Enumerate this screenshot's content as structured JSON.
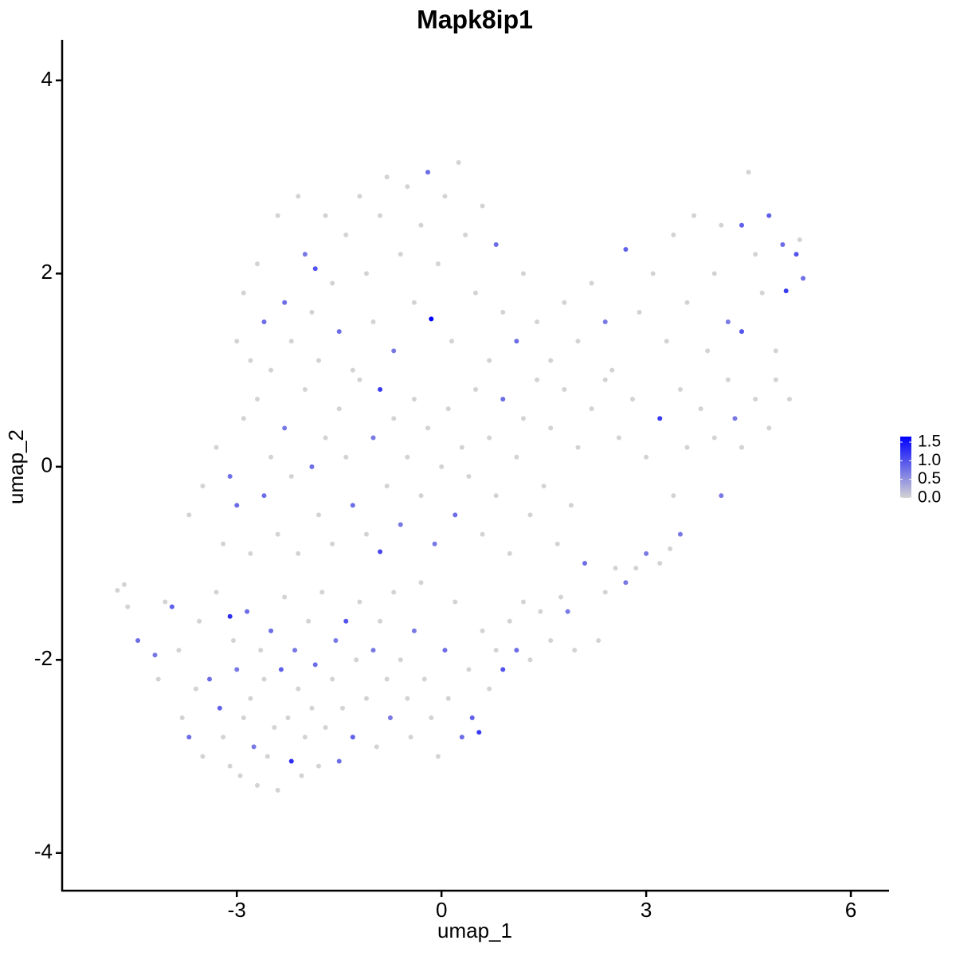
{
  "chart_data": {
    "type": "scatter",
    "title": "Mapk8ip1",
    "x_label": "umap_1",
    "y_label": "umap_2",
    "xlim": [
      -5.56,
      6.56
    ],
    "ylim": [
      -4.39,
      4.42
    ],
    "xticks": [
      -3,
      0,
      3,
      6
    ],
    "yticks": [
      -4,
      -2,
      0,
      2,
      4
    ],
    "color_scale": {
      "low": "#d3d3d3",
      "high": "#0000ff",
      "limits": [
        0,
        1.65
      ],
      "ticks": [
        {
          "value": 0,
          "label": "0.0"
        },
        {
          "value": 0.5,
          "label": "0.5"
        },
        {
          "value": 1,
          "label": "1.0"
        },
        {
          "value": 1.5,
          "label": "1.5"
        }
      ]
    },
    "x": [
      -4.75,
      -4.65,
      -4.6,
      -4.45,
      -4.2,
      -4.15,
      -4.05,
      -3.95,
      -3.85,
      -3.8,
      -3.7,
      -3.6,
      -3.55,
      -3.5,
      -3.4,
      -3.3,
      -3.25,
      -3.2,
      -3.1,
      -3.05,
      -3.0,
      -2.95,
      -2.9,
      -2.85,
      -2.8,
      -2.75,
      -2.7,
      -2.65,
      -2.6,
      -2.55,
      -2.5,
      -2.45,
      -2.4,
      -2.35,
      -2.3,
      -2.25,
      -2.2,
      -2.15,
      -2.1,
      -2.05,
      -2.0,
      -1.95,
      -1.9,
      -1.85,
      -1.8,
      -1.75,
      -1.7,
      -1.6,
      -1.55,
      -1.5,
      -1.45,
      -1.4,
      -1.3,
      -1.25,
      -1.2,
      -1.1,
      -1.0,
      -0.95,
      -0.9,
      -0.8,
      -0.75,
      -0.7,
      -0.6,
      -0.5,
      -0.45,
      -0.4,
      -0.3,
      -0.25,
      -0.15,
      -0.05,
      0.05,
      0.1,
      0.2,
      0.3,
      0.4,
      0.45,
      0.55,
      0.6,
      0.7,
      0.8,
      0.9,
      1.0,
      1.1,
      1.2,
      1.3,
      1.45,
      1.6,
      1.75,
      1.85,
      1.95,
      2.3,
      2.4,
      2.55,
      2.7,
      2.85,
      3.0,
      3.2,
      3.35,
      3.5,
      -3.1,
      -3.7,
      -3.5,
      -3.3,
      -3.2,
      -3.1,
      -3.0,
      -2.9,
      -2.8,
      -2.7,
      -2.6,
      -2.5,
      -2.4,
      -2.3,
      -2.2,
      -2.1,
      -2.0,
      -1.9,
      -1.8,
      -1.7,
      -1.6,
      -1.5,
      -1.4,
      -1.3,
      -1.2,
      -1.1,
      -1.0,
      -0.9,
      -0.9,
      -0.8,
      -0.7,
      -0.6,
      -0.5,
      -0.4,
      -0.3,
      -0.2,
      -0.1,
      0.0,
      0.1,
      0.2,
      0.3,
      0.4,
      0.5,
      0.6,
      0.7,
      0.8,
      0.9,
      1.0,
      1.1,
      1.2,
      1.3,
      1.4,
      1.5,
      1.6,
      1.7,
      1.8,
      1.9,
      2.0,
      2.1,
      2.2,
      2.4,
      2.6,
      2.8,
      3.0,
      3.2,
      3.4,
      3.5,
      3.6,
      3.8,
      4.0,
      4.1,
      4.2,
      4.3,
      4.4,
      4.6,
      4.8,
      4.9,
      5.1,
      -3.0,
      -2.9,
      -2.8,
      -2.7,
      -2.6,
      -2.5,
      -2.4,
      -2.3,
      -2.2,
      -2.1,
      -2.0,
      -1.9,
      -1.85,
      -1.8,
      -1.7,
      -1.6,
      -1.5,
      -1.4,
      -1.3,
      -1.2,
      -1.1,
      -1.0,
      -0.9,
      -0.8,
      -0.7,
      -0.6,
      -0.5,
      -0.4,
      -0.3,
      -0.2,
      -0.15,
      -0.05,
      0.05,
      0.15,
      0.25,
      0.35,
      0.5,
      0.6,
      0.7,
      0.8,
      0.9,
      1.1,
      1.2,
      1.4,
      1.6,
      1.8,
      2.0,
      2.2,
      2.4,
      2.5,
      2.7,
      2.9,
      3.1,
      3.3,
      3.4,
      3.6,
      3.7,
      3.9,
      4.0,
      4.1,
      4.2,
      4.4,
      4.4,
      4.5,
      4.6,
      4.7,
      4.8,
      4.9,
      5.0,
      5.05,
      5.2,
      5.3,
      5.25
    ],
    "y": [
      -1.28,
      -1.22,
      -1.45,
      -1.8,
      -1.95,
      -2.2,
      -1.4,
      -1.45,
      -1.9,
      -2.6,
      -2.8,
      -2.3,
      -1.6,
      -3.0,
      -2.2,
      -1.3,
      -2.5,
      -2.8,
      -3.1,
      -1.8,
      -2.1,
      -3.2,
      -2.6,
      -1.5,
      -2.4,
      -2.9,
      -3.3,
      -1.9,
      -2.2,
      -3.0,
      -1.7,
      -2.7,
      -3.35,
      -2.1,
      -1.35,
      -2.6,
      -3.05,
      -1.9,
      -2.3,
      -3.2,
      -2.8,
      -1.6,
      -2.5,
      -2.05,
      -3.1,
      -1.3,
      -2.7,
      -2.2,
      -1.8,
      -3.05,
      -2.5,
      -1.6,
      -2.8,
      -2.0,
      -1.4,
      -2.4,
      -1.9,
      -2.9,
      -1.6,
      -2.2,
      -2.6,
      -1.3,
      -2.0,
      -2.4,
      -2.8,
      -1.7,
      -1.2,
      -2.2,
      -2.6,
      -3.0,
      -1.9,
      -2.4,
      -1.4,
      -2.8,
      -2.1,
      -2.6,
      -2.75,
      -1.7,
      -2.3,
      -1.9,
      -2.1,
      -1.6,
      -1.9,
      -1.4,
      -2.0,
      -1.5,
      -1.8,
      -1.35,
      -1.5,
      -1.9,
      -1.8,
      -1.3,
      -1.05,
      -1.2,
      -1.05,
      -0.9,
      -1.0,
      -0.85,
      -0.7,
      -1.55,
      -0.5,
      -0.2,
      0.2,
      -0.8,
      -0.1,
      -0.4,
      0.5,
      -0.9,
      0.7,
      -0.3,
      0.1,
      -0.7,
      0.4,
      -0.1,
      -0.9,
      0.8,
      0.0,
      -0.5,
      0.3,
      -0.8,
      0.6,
      0.1,
      -0.4,
      0.9,
      -0.7,
      0.3,
      -0.88,
      0.8,
      -0.2,
      0.5,
      -0.6,
      0.1,
      0.7,
      -0.3,
      0.4,
      -0.8,
      0.0,
      0.6,
      -0.5,
      0.2,
      -0.1,
      0.8,
      -0.7,
      0.3,
      -0.3,
      0.7,
      -0.9,
      0.1,
      0.5,
      -0.5,
      0.9,
      -0.2,
      0.4,
      -0.8,
      0.8,
      -0.4,
      0.2,
      -1.0,
      0.6,
      0.9,
      0.3,
      0.7,
      0.1,
      0.5,
      -0.3,
      0.8,
      0.2,
      0.6,
      0.3,
      -0.3,
      0.9,
      0.5,
      0.2,
      0.7,
      0.4,
      0.9,
      0.7,
      1.3,
      1.8,
      1.1,
      2.1,
      1.5,
      1.0,
      2.6,
      1.7,
      1.3,
      2.8,
      2.2,
      1.6,
      2.05,
      1.1,
      2.6,
      1.9,
      1.4,
      2.4,
      1.0,
      2.8,
      2.0,
      1.5,
      2.6,
      3.0,
      1.2,
      2.2,
      2.9,
      1.7,
      2.5,
      3.05,
      1.53,
      2.1,
      2.8,
      1.3,
      3.15,
      2.4,
      1.8,
      2.7,
      1.1,
      2.3,
      1.6,
      1.3,
      2.0,
      1.5,
      1.1,
      1.7,
      1.3,
      1.9,
      1.5,
      1.0,
      2.25,
      1.6,
      2.0,
      1.3,
      2.4,
      1.7,
      2.6,
      1.2,
      2.0,
      2.5,
      1.5,
      1.4,
      2.5,
      3.05,
      2.2,
      1.8,
      2.6,
      1.2,
      2.3,
      1.82,
      2.2,
      1.95,
      2.35
    ],
    "values": [
      0,
      0,
      0,
      0.8,
      0.7,
      0,
      0,
      0.9,
      0,
      0,
      0.8,
      0,
      0,
      0,
      0.8,
      0,
      0.9,
      0,
      0,
      0,
      0.7,
      0,
      0,
      0.8,
      0,
      0.7,
      0,
      0,
      0,
      0,
      0.8,
      0,
      0,
      0.9,
      0,
      0,
      1.3,
      0.7,
      0,
      0,
      0,
      0,
      0,
      0.8,
      0,
      0,
      0,
      0,
      0.7,
      0.8,
      0,
      1.0,
      0.9,
      0,
      0,
      0,
      0.7,
      0,
      0,
      0,
      0.7,
      0,
      0,
      0,
      0,
      0.7,
      0,
      0,
      0,
      0,
      0.8,
      0,
      0,
      0.8,
      0,
      0.9,
      1.2,
      0,
      0,
      0,
      1.0,
      0,
      0.8,
      0,
      0,
      0,
      0,
      0,
      0.7,
      0,
      0,
      0,
      0,
      0.7,
      0,
      0.7,
      0,
      0,
      0.7,
      1.3,
      0,
      0,
      0,
      0,
      0.8,
      0.8,
      0,
      0,
      0,
      0.8,
      0,
      0,
      0.7,
      0,
      0,
      0,
      0.8,
      0,
      0,
      0,
      0,
      0,
      0.8,
      0,
      0,
      0.7,
      1.1,
      1.2,
      0,
      0,
      0.7,
      0,
      0,
      0,
      0,
      0.7,
      0,
      0,
      0.8,
      0,
      0,
      0,
      0,
      0,
      0,
      0.8,
      0,
      0,
      0,
      0,
      0,
      0,
      0,
      0,
      0,
      0,
      0,
      0.8,
      0,
      0,
      0,
      0,
      0,
      1.2,
      0,
      0,
      0,
      0,
      0,
      0.7,
      0,
      0.7,
      0,
      0,
      0,
      0,
      0,
      0,
      0,
      0,
      0,
      0.8,
      0,
      0,
      0.8,
      0,
      0,
      0.7,
      0,
      1.0,
      0,
      0,
      0,
      0.8,
      0,
      0,
      0,
      0,
      0,
      0,
      0,
      0.7,
      0,
      0,
      0,
      0,
      0.8,
      1.65,
      0,
      0,
      0,
      0,
      0,
      0,
      0,
      0,
      0.8,
      0,
      0.8,
      0,
      0,
      0,
      0,
      0,
      0,
      0.7,
      0,
      0.9,
      0,
      0,
      0,
      0,
      0,
      0,
      0,
      0,
      0,
      0.7,
      1.0,
      0.9,
      0,
      0,
      0,
      0.9,
      0,
      0.8,
      1.2,
      1.0,
      0.8,
      0
    ]
  }
}
